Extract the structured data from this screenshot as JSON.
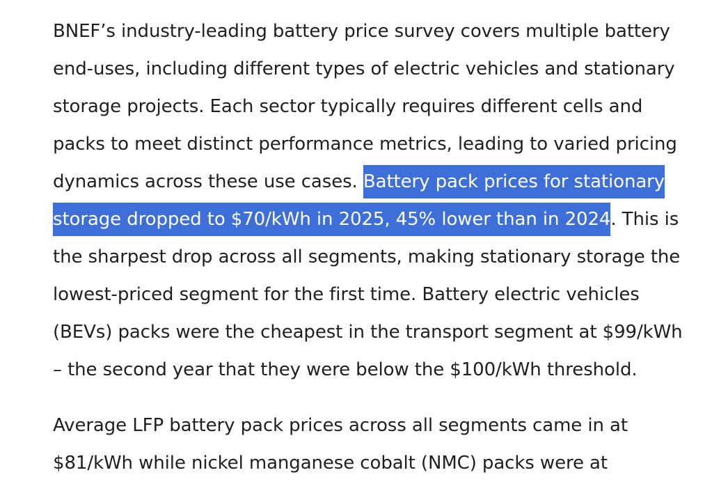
{
  "article": {
    "paragraph1": {
      "line1": "BNEF’s industry-leading battery price survey covers multiple battery",
      "line2": "end-uses, including different types of electric vehicles and stationary",
      "line3": "storage projects. Each sector typically requires different cells and",
      "line4": "packs to meet distinct performance metrics, leading to varied pricing",
      "line5_plain": "dynamics across these use cases. ",
      "line5_selected": "Battery pack prices for stationary",
      "line6_selected": "storage dropped to $70/kWh in 2025, 45% lower than in 2024",
      "line6_plain": ". This is",
      "line7": "the sharpest drop across all segments, making stationary storage the",
      "line8": "lowest-priced segment for the first time. Battery electric vehicles",
      "line9": "(BEVs) packs were the cheapest in the transport segment at $99/kWh",
      "line10": "– the second year that they were below the $100/kWh threshold."
    },
    "paragraph2": {
      "line1": "Average LFP battery pack prices across all segments came in at",
      "line2": "$81/kWh while nickel manganese cobalt (NMC) packs were at"
    }
  },
  "colors": {
    "text": "#1f1f1f",
    "selection_background": "#3e6fd8",
    "selection_text": "#ffffff",
    "page_background": "#ffffff"
  }
}
